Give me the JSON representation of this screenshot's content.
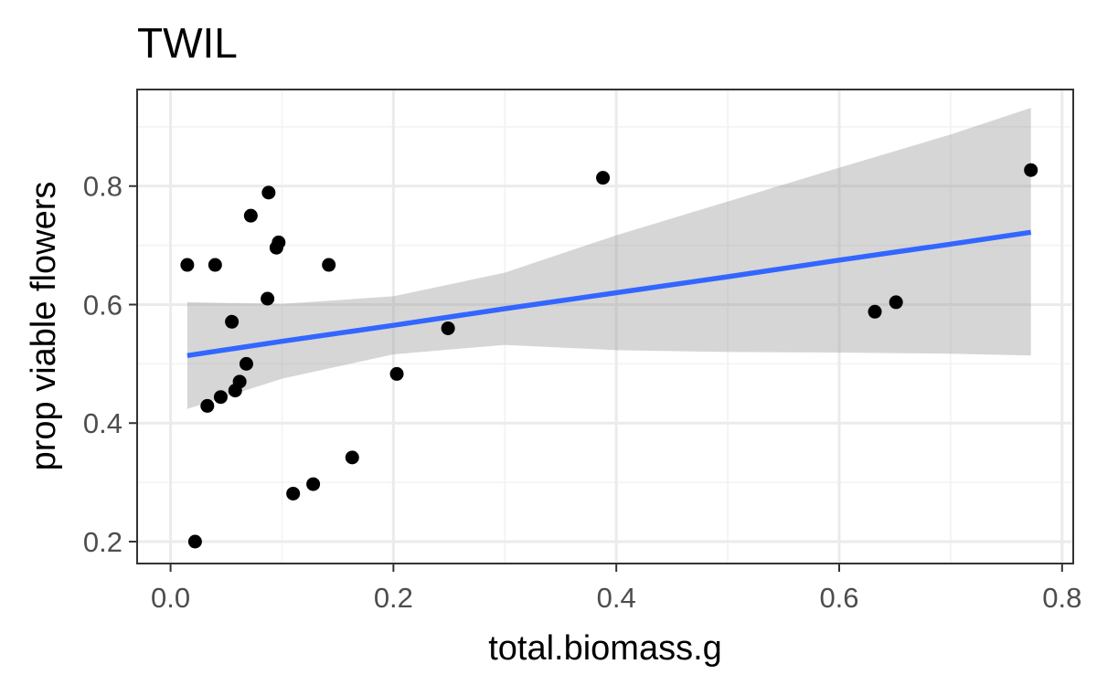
{
  "chart_data": {
    "type": "scatter",
    "title": "TWIL",
    "xlabel": "total.biomass.g",
    "ylabel": "prop viable flowers",
    "xlim": [
      -0.03,
      0.81
    ],
    "ylim": [
      0.163,
      0.963
    ],
    "x_ticks": [
      0.0,
      0.2,
      0.4,
      0.6,
      0.8
    ],
    "x_tick_labels": [
      "0.0",
      "0.2",
      "0.4",
      "0.6",
      "0.8"
    ],
    "y_ticks": [
      0.2,
      0.4,
      0.6,
      0.8
    ],
    "y_tick_labels": [
      "0.2",
      "0.4",
      "0.6",
      "0.8"
    ],
    "grid": true,
    "theme": "bw",
    "points": [
      {
        "x": 0.015,
        "y": 0.667
      },
      {
        "x": 0.022,
        "y": 0.2
      },
      {
        "x": 0.033,
        "y": 0.429
      },
      {
        "x": 0.04,
        "y": 0.667
      },
      {
        "x": 0.045,
        "y": 0.444
      },
      {
        "x": 0.055,
        "y": 0.571
      },
      {
        "x": 0.058,
        "y": 0.455
      },
      {
        "x": 0.062,
        "y": 0.47
      },
      {
        "x": 0.068,
        "y": 0.5
      },
      {
        "x": 0.072,
        "y": 0.75
      },
      {
        "x": 0.087,
        "y": 0.61
      },
      {
        "x": 0.088,
        "y": 0.789
      },
      {
        "x": 0.095,
        "y": 0.696
      },
      {
        "x": 0.097,
        "y": 0.705
      },
      {
        "x": 0.11,
        "y": 0.281
      },
      {
        "x": 0.128,
        "y": 0.297
      },
      {
        "x": 0.142,
        "y": 0.667
      },
      {
        "x": 0.163,
        "y": 0.342
      },
      {
        "x": 0.203,
        "y": 0.483
      },
      {
        "x": 0.249,
        "y": 0.56
      },
      {
        "x": 0.388,
        "y": 0.814
      },
      {
        "x": 0.632,
        "y": 0.588
      },
      {
        "x": 0.651,
        "y": 0.604
      },
      {
        "x": 0.772,
        "y": 0.827
      }
    ],
    "fit": {
      "method": "lm",
      "x": [
        0.015,
        0.1,
        0.2,
        0.3,
        0.4,
        0.5,
        0.6,
        0.7,
        0.772
      ],
      "y": [
        0.514,
        0.538,
        0.565,
        0.593,
        0.62,
        0.647,
        0.675,
        0.702,
        0.722
      ],
      "lower": [
        0.424,
        0.475,
        0.516,
        0.532,
        0.523,
        0.52,
        0.519,
        0.517,
        0.514
      ],
      "upper": [
        0.604,
        0.601,
        0.614,
        0.654,
        0.717,
        0.774,
        0.831,
        0.887,
        0.932
      ]
    },
    "colors": {
      "point": "#000000",
      "fit_line": "#3366FF",
      "ribbon": "#999999",
      "grid_major": "#EBEBEB",
      "grid_minor": "#F2F2F2",
      "panel_border": "#333333",
      "tick_label": "#4D4D4D"
    }
  }
}
